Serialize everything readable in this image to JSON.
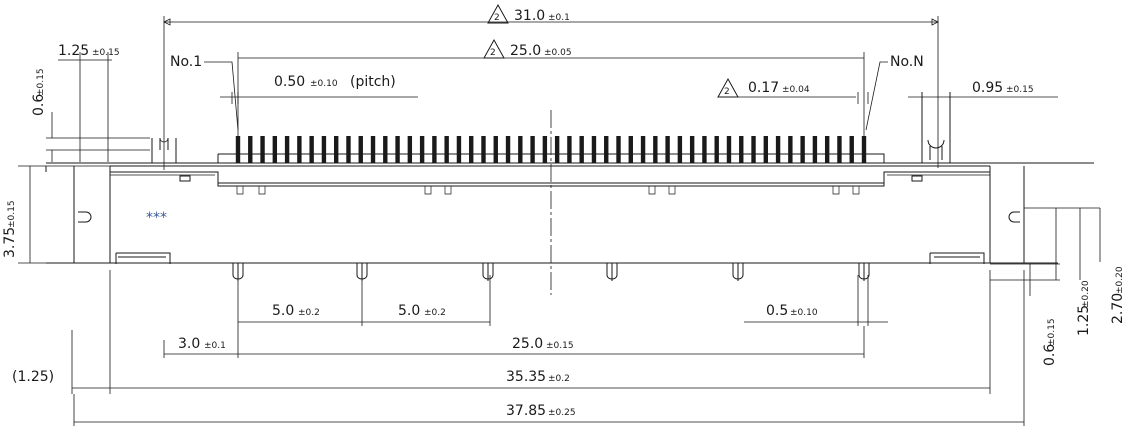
{
  "dimensions": {
    "overall_width": {
      "value": "31.0",
      "tol": "±0.1",
      "delta": "2"
    },
    "contact_span": {
      "value": "25.0",
      "tol": "±0.05",
      "delta": "2"
    },
    "pitch": {
      "value": "0.50",
      "tol": "±0.10",
      "suffix": "(pitch)"
    },
    "contact_width": {
      "value": "0.17",
      "tol": "±0.04",
      "delta": "2"
    },
    "left_slot": {
      "value": "1.25",
      "tol": "±0.15"
    },
    "right_slot": {
      "value": "0.95",
      "tol": "±0.15"
    },
    "left_height": {
      "value": "0.6",
      "tol": "±0.15"
    },
    "body_height": {
      "value": "3.75",
      "tol": "±0.15"
    },
    "peg_spacing_1": {
      "value": "5.0",
      "tol": "±0.2"
    },
    "peg_spacing_2": {
      "value": "5.0",
      "tol": "±0.2"
    },
    "peg_offset": {
      "value": "3.0",
      "tol": "±0.1"
    },
    "peg_span": {
      "value": "25.0",
      "tol": "±0.15"
    },
    "peg_width": {
      "value": "0.5",
      "tol": "±0.10"
    },
    "ref_offset": {
      "value": "(1.25)"
    },
    "mid_width": {
      "value": "35.35",
      "tol": "±0.2"
    },
    "total_width": {
      "value": "37.85",
      "tol": "±0.25"
    },
    "right_h1": {
      "value": "0.6",
      "tol": "±0.15"
    },
    "right_h2": {
      "value": "1.25",
      "tol": "±0.20"
    },
    "right_h3": {
      "value": "2.70",
      "tol": "±0.20"
    }
  },
  "labels": {
    "first_pin": "No.1",
    "last_pin": "No.N",
    "marker": "***"
  },
  "colors": {
    "line": "#1a1a1a",
    "marker": "#3a5a9a"
  }
}
